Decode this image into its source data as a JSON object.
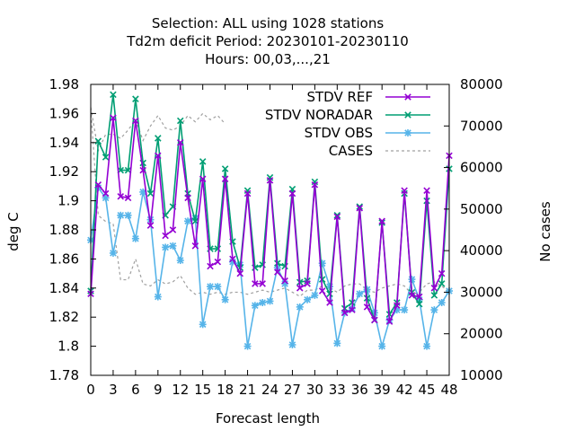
{
  "chart_data": {
    "type": "line",
    "title_lines": [
      "Selection: ALL using  1028 stations",
      "Td2m deficit   Period: 20230101-20230110",
      "Hours:  00,03,...,21"
    ],
    "xlabel": "Forecast length",
    "ylabel": "deg C",
    "y2label": "No cases",
    "xlim": [
      0,
      48
    ],
    "ylim": [
      1.78,
      1.98
    ],
    "y2lim": [
      10000,
      80000
    ],
    "x_ticks": [
      "0",
      "3",
      "6",
      "9",
      "12",
      "15",
      "18",
      "21",
      "24",
      "27",
      "30",
      "33",
      "36",
      "39",
      "42",
      "45",
      "48"
    ],
    "y_ticks": [
      "1.78",
      "1.8",
      "1.82",
      "1.84",
      "1.86",
      "1.88",
      "1.9",
      "1.92",
      "1.94",
      "1.96",
      "1.98"
    ],
    "y2_ticks": [
      "10000",
      "20000",
      "30000",
      "40000",
      "50000",
      "60000",
      "70000",
      "80000"
    ],
    "legend_position": "top-right",
    "x": [
      0,
      1,
      2,
      3,
      4,
      5,
      6,
      7,
      8,
      9,
      10,
      11,
      12,
      13,
      14,
      15,
      16,
      17,
      18,
      19,
      20,
      21,
      22,
      23,
      24,
      25,
      26,
      27,
      28,
      29,
      30,
      31,
      32,
      33,
      34,
      35,
      36,
      37,
      38,
      39,
      40,
      41,
      42,
      43,
      44,
      45,
      46,
      47,
      48
    ],
    "series": [
      {
        "name": "STDV REF",
        "color": "#9400d3",
        "marker": "x",
        "axis": "y",
        "values": [
          1.836,
          1.911,
          1.905,
          1.957,
          1.903,
          1.902,
          1.955,
          1.921,
          1.883,
          1.931,
          1.876,
          1.88,
          1.94,
          1.902,
          1.869,
          1.915,
          1.855,
          1.858,
          1.915,
          1.86,
          1.85,
          1.905,
          1.843,
          1.843,
          1.914,
          1.851,
          1.845,
          1.905,
          1.84,
          1.843,
          1.911,
          1.838,
          1.83,
          1.889,
          1.823,
          1.825,
          1.895,
          1.827,
          1.818,
          1.886,
          1.817,
          1.828,
          1.907,
          1.835,
          1.834,
          1.907,
          1.84,
          1.85,
          1.931
        ]
      },
      {
        "name": "STDV NORADAR",
        "color": "#009e73",
        "marker": "x",
        "axis": "y",
        "values": [
          1.838,
          1.941,
          1.93,
          1.973,
          1.921,
          1.921,
          1.97,
          1.926,
          1.905,
          1.943,
          1.89,
          1.896,
          1.955,
          1.905,
          1.886,
          1.927,
          1.867,
          1.867,
          1.922,
          1.872,
          1.854,
          1.907,
          1.854,
          1.856,
          1.916,
          1.857,
          1.855,
          1.908,
          1.844,
          1.845,
          1.913,
          1.846,
          1.836,
          1.89,
          1.826,
          1.83,
          1.896,
          1.833,
          1.818,
          1.885,
          1.822,
          1.83,
          1.905,
          1.837,
          1.829,
          1.9,
          1.835,
          1.843,
          1.922
        ]
      },
      {
        "name": "STDV OBS",
        "color": "#56b4e9",
        "marker": "*",
        "axis": "y",
        "values": [
          1.873,
          1.909,
          1.902,
          1.864,
          1.89,
          1.89,
          1.874,
          1.906,
          1.887,
          1.834,
          1.868,
          1.869,
          1.859,
          1.886,
          1.888,
          1.815,
          1.841,
          1.841,
          1.832,
          1.858,
          1.856,
          1.8,
          1.828,
          1.83,
          1.831,
          1.854,
          1.843,
          1.801,
          1.827,
          1.832,
          1.835,
          1.857,
          1.841,
          1.802,
          1.823,
          1.826,
          1.836,
          1.839,
          1.823,
          1.8,
          1.818,
          1.825,
          1.825,
          1.846,
          1.832,
          1.8,
          1.825,
          1.83,
          1.838
        ]
      },
      {
        "name": "CASES",
        "color": "#a0a0a0",
        "marker": "none",
        "dashed": true,
        "axis": "y2",
        "values": [
          74000,
          48500,
          47000,
          46500,
          33000,
          33000,
          38000,
          32000,
          31500,
          33000,
          32000,
          32500,
          34000,
          31000,
          29500,
          30000,
          29500,
          30000,
          29500,
          30000,
          30000,
          29500,
          30000,
          30500,
          30000,
          30500,
          31000,
          30000,
          29000,
          30500,
          30500,
          31500,
          31000,
          30000,
          31500,
          32000,
          32000,
          30500,
          30000,
          31000,
          31500,
          32000,
          31500,
          29500,
          30000,
          32000,
          32500,
          31500,
          30000
        ]
      },
      {
        "name": "",
        "color": "#a0a0a0",
        "marker": "none",
        "dashed": true,
        "axis": "y2",
        "values": [
          74500,
          64000,
          68000,
          68000,
          67000,
          69000,
          71500,
          66500,
          70000,
          72500,
          69500,
          69000,
          70000,
          72500,
          71000,
          73000,
          71500,
          72500,
          70500,
          null,
          null,
          null,
          null,
          null,
          null,
          null,
          null,
          null,
          null,
          null,
          null,
          null,
          null,
          null,
          null,
          null,
          null,
          null,
          null,
          null,
          null,
          null,
          null,
          null,
          null,
          null,
          null,
          null,
          null
        ]
      }
    ]
  }
}
